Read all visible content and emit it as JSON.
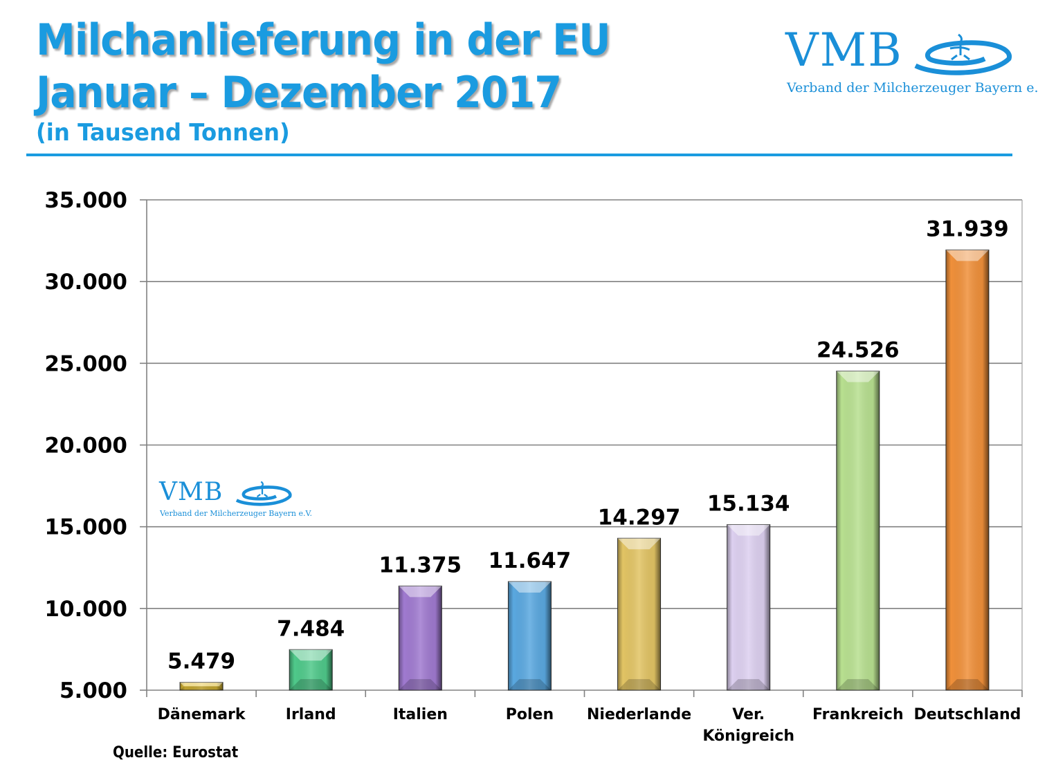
{
  "header": {
    "title_line1": "Milchanlieferung in der EU",
    "title_line2": "Januar – Dezember 2017",
    "subtitle": "(in Tausend Tonnen)"
  },
  "logo": {
    "abbr": "VMB",
    "full_name": "Verband der Milcherzeuger Bayern e.V.",
    "color": "#1a8fd8"
  },
  "source": "Quelle: Eurostat",
  "chart_data": {
    "type": "bar",
    "title": "Milchanlieferung in der EU Januar – Dezember 2017",
    "subtitle": "(in Tausend Tonnen)",
    "xlabel": "",
    "ylabel": "",
    "unit": "Tausend Tonnen",
    "ylim": [
      5000,
      35000
    ],
    "yticks": [
      5000,
      10000,
      15000,
      20000,
      25000,
      30000,
      35000
    ],
    "ytick_labels": [
      "5.000",
      "10.000",
      "15.000",
      "20.000",
      "25.000",
      "30.000",
      "35.000"
    ],
    "grid": true,
    "legend": "none",
    "categories": [
      {
        "label": "Dänemark",
        "lines": [
          "Dänemark"
        ]
      },
      {
        "label": "Irland",
        "lines": [
          "Irland"
        ]
      },
      {
        "label": "Italien",
        "lines": [
          "Italien"
        ]
      },
      {
        "label": "Polen",
        "lines": [
          "Polen"
        ]
      },
      {
        "label": "Niederlande",
        "lines": [
          "Niederlande"
        ]
      },
      {
        "label": "Ver. Königreich",
        "lines": [
          "Ver.",
          "Königreich"
        ]
      },
      {
        "label": "Frankreich",
        "lines": [
          "Frankreich"
        ]
      },
      {
        "label": "Deutschland",
        "lines": [
          "Deutschland"
        ]
      }
    ],
    "values": [
      5479,
      7484,
      11375,
      11647,
      14297,
      15134,
      24526,
      31939
    ],
    "value_labels": [
      "5.479",
      "7.484",
      "11.375",
      "11.647",
      "14.297",
      "15.134",
      "24.526",
      "31.939"
    ],
    "bar_colors": [
      "#e8c53a",
      "#4fc98a",
      "#a07ad0",
      "#5aa8e0",
      "#e2c464",
      "#ddd0f0",
      "#b8e090",
      "#f0903a"
    ]
  }
}
